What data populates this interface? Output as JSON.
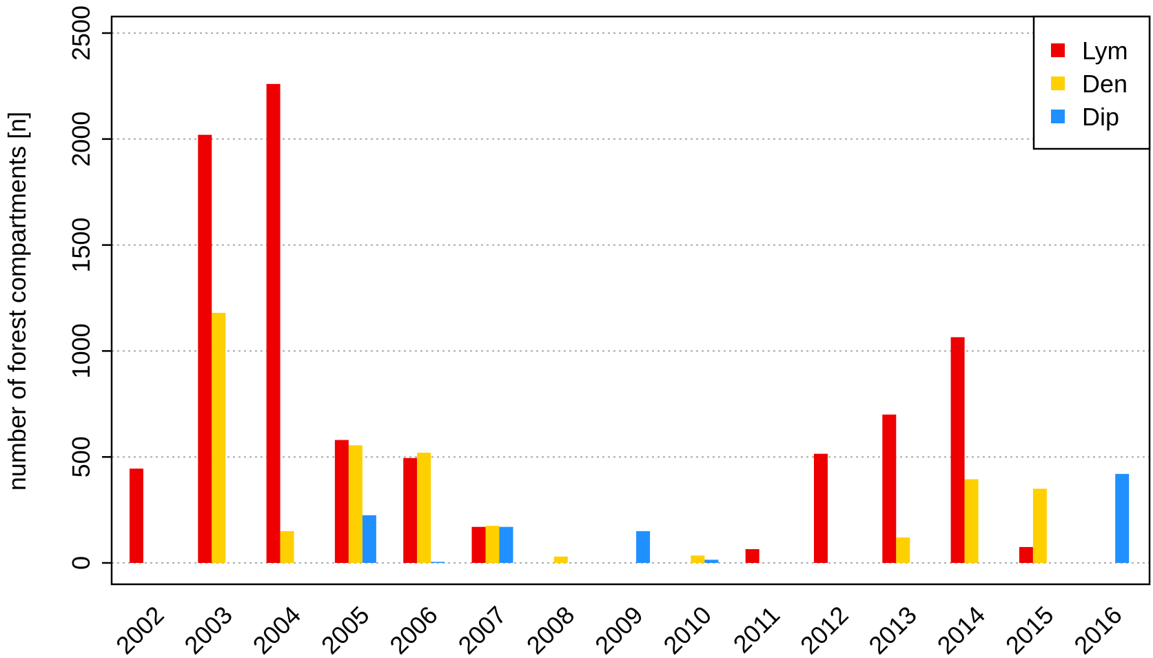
{
  "chart_data": {
    "type": "bar",
    "ylabel": "number of forest compartments [n]",
    "xlabel": "",
    "ylim": [
      0,
      2500
    ],
    "yticks": [
      0,
      500,
      1000,
      1500,
      2000,
      2500
    ],
    "grid": "horizontal-dotted",
    "legend_position": "top-right",
    "categories": [
      "2002",
      "2003",
      "2004",
      "2005",
      "2006",
      "2007",
      "2008",
      "2009",
      "2010",
      "2011",
      "2012",
      "2013",
      "2014",
      "2015",
      "2016"
    ],
    "series": [
      {
        "name": "Lym",
        "color": "#ee0000",
        "values": [
          445,
          2020,
          2260,
          580,
          495,
          170,
          0,
          0,
          0,
          65,
          515,
          700,
          1065,
          75,
          0
        ]
      },
      {
        "name": "Den",
        "color": "#ffd000",
        "values": [
          0,
          1180,
          150,
          555,
          520,
          175,
          30,
          0,
          35,
          0,
          0,
          120,
          395,
          350,
          0
        ]
      },
      {
        "name": "Dip",
        "color": "#2090ff",
        "values": [
          0,
          0,
          0,
          225,
          5,
          170,
          0,
          150,
          15,
          0,
          0,
          0,
          0,
          0,
          420
        ]
      }
    ]
  }
}
